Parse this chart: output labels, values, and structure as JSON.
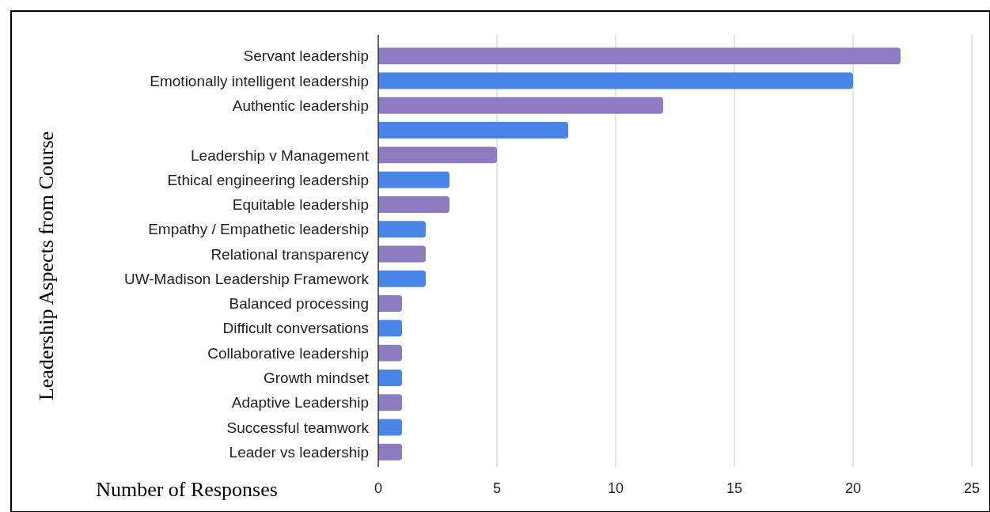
{
  "chart_data": {
    "type": "bar",
    "orientation": "horizontal",
    "xlabel": "Number of Responses",
    "ylabel": "Leadership Aspects from Course",
    "categories": [
      "Servant leadership",
      "Emotionally intelligent leadership",
      "Authentic leadership",
      null,
      "Leadership v Management",
      "Ethical engineering leadership",
      "Equitable leadership",
      "Empathy / Empathetic leadership",
      "Relational transparency",
      "UW-Madison Leadership Framework",
      "Balanced processing",
      "Difficult conversations",
      "Collaborative leadership",
      "Growth mindset",
      "Adaptive Leadership",
      "Successful teamwork",
      "Leader vs leadership"
    ],
    "values": [
      22,
      20,
      12,
      8,
      5,
      3,
      3,
      2,
      2,
      2,
      1,
      1,
      1,
      1,
      1,
      1,
      1
    ],
    "colors": [
      "#8e7cc3",
      "#4a86e8",
      "#8e7cc3",
      "#4a86e8",
      "#8e7cc3",
      "#4a86e8",
      "#8e7cc3",
      "#4a86e8",
      "#8e7cc3",
      "#4a86e8",
      "#8e7cc3",
      "#4a86e8",
      "#8e7cc3",
      "#4a86e8",
      "#8e7cc3",
      "#4a86e8",
      "#8e7cc3"
    ],
    "xlim": [
      0,
      25
    ],
    "xticks": [
      0,
      5,
      10,
      15,
      20,
      25
    ],
    "grid": "x"
  }
}
